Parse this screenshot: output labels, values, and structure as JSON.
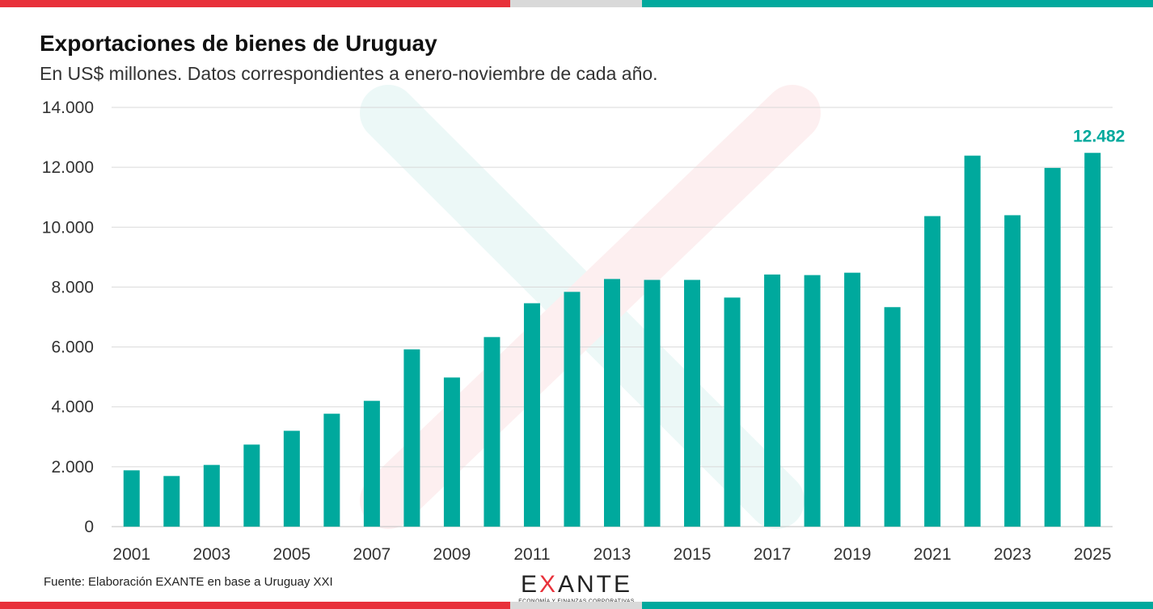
{
  "header": {
    "title": "Exportaciones de bienes de Uruguay",
    "subtitle": "En US$ millones. Datos correspondientes a enero-noviembre de cada año."
  },
  "footer": {
    "source": "Fuente: Elaboración EXANTE en base a Uruguay XXI",
    "logo_word_part1": "E",
    "logo_word_x": "X",
    "logo_word_part2": "ANTE",
    "logo_tagline": "ECONOMÍA Y FINANZAS CORPORATIVAS"
  },
  "colors": {
    "bar": "#00a99d",
    "accent_red": "#e8313a",
    "accent_gray": "#d9d9d9",
    "accent_teal": "#00a99d",
    "grid": "#d9d9d9",
    "watermark_teal": "#00a99d",
    "watermark_red": "#e8313a"
  },
  "chart_data": {
    "type": "bar",
    "categories": [
      "2001",
      "2002",
      "2003",
      "2004",
      "2005",
      "2006",
      "2007",
      "2008",
      "2009",
      "2010",
      "2011",
      "2012",
      "2013",
      "2014",
      "2015",
      "2016",
      "2017",
      "2018",
      "2019",
      "2020",
      "2021",
      "2022",
      "2023",
      "2024",
      "2025"
    ],
    "x_tick_labels": [
      "2001",
      "",
      "2003",
      "",
      "2005",
      "",
      "2007",
      "",
      "2009",
      "",
      "2011",
      "",
      "2013",
      "",
      "2015",
      "",
      "2017",
      "",
      "2019",
      "",
      "2021",
      "",
      "2023",
      "",
      "2025"
    ],
    "values": [
      1880,
      1690,
      2060,
      2740,
      3200,
      3770,
      4200,
      5920,
      4980,
      6330,
      7460,
      7840,
      8270,
      8240,
      8240,
      7650,
      8420,
      8400,
      8480,
      7330,
      10370,
      12390,
      10400,
      11980,
      12482
    ],
    "ylim": [
      0,
      14000
    ],
    "y_ticks": [
      0,
      2000,
      4000,
      6000,
      8000,
      10000,
      12000,
      14000
    ],
    "y_tick_labels": [
      "0",
      "2.000",
      "4.000",
      "6.000",
      "8.000",
      "10.000",
      "12.000",
      "14.000"
    ],
    "data_labels": [
      {
        "index": 24,
        "text": "12.482"
      }
    ],
    "grid": true,
    "legend": "none",
    "title": "Exportaciones de bienes de Uruguay",
    "subtitle": "En US$ millones. Datos correspondientes a enero-noviembre de cada año.",
    "xlabel": "",
    "ylabel": ""
  }
}
